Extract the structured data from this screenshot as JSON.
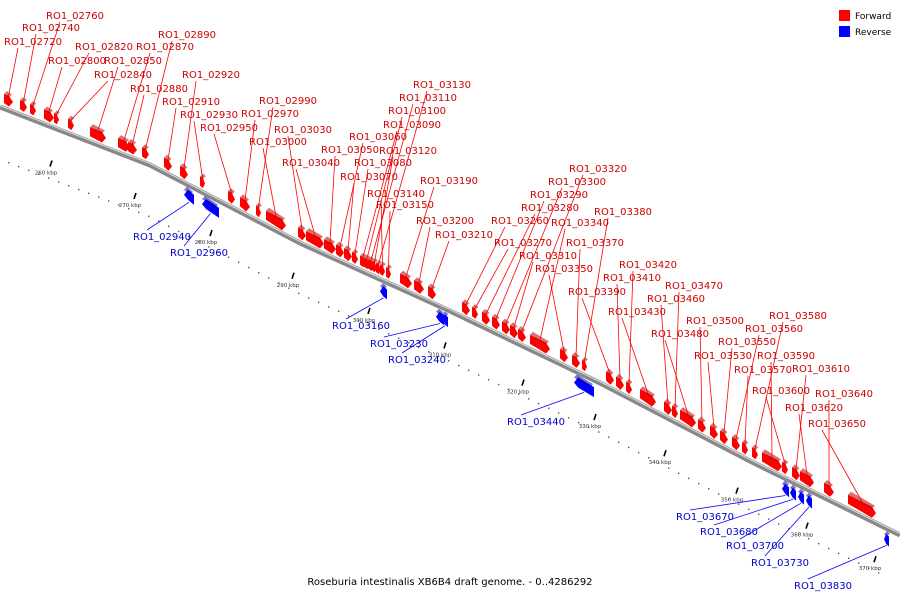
{
  "caption": "Roseburia intestinalis XB6B4 draft genome. - 0..4286292",
  "colors": {
    "forward": "#ff0000",
    "reverse": "#0000ff",
    "backbone": "#888888"
  },
  "legend": [
    {
      "label": "Forward",
      "color": "#ff0000"
    },
    {
      "label": "Reverse",
      "color": "#0000ff"
    }
  ],
  "ticks": [
    {
      "label": "260 kbp",
      "kbp": 260
    },
    {
      "label": "270 kbp",
      "kbp": 270
    },
    {
      "label": "280 kbp",
      "kbp": 280
    },
    {
      "label": "290 kbp",
      "kbp": 290
    },
    {
      "label": "300 kbp",
      "kbp": 300
    },
    {
      "label": "310 kbp",
      "kbp": 310
    },
    {
      "label": "320 kbp",
      "kbp": 320
    },
    {
      "label": "330 kbp",
      "kbp": 330
    },
    {
      "label": "340 kbp",
      "kbp": 340
    },
    {
      "label": "350 kbp",
      "kbp": 350
    },
    {
      "label": "360 kbp",
      "kbp": 360
    },
    {
      "label": "370 kbp",
      "kbp": 370
    }
  ],
  "genes": [
    {
      "name": "RO1_02720",
      "strand": "forward"
    },
    {
      "name": "RO1_02740",
      "strand": "forward"
    },
    {
      "name": "RO1_02760",
      "strand": "forward"
    },
    {
      "name": "RO1_02800",
      "strand": "forward"
    },
    {
      "name": "RO1_02820",
      "strand": "forward"
    },
    {
      "name": "RO1_02840",
      "strand": "forward"
    },
    {
      "name": "RO1_02850",
      "strand": "forward"
    },
    {
      "name": "RO1_02870",
      "strand": "forward"
    },
    {
      "name": "RO1_02880",
      "strand": "forward"
    },
    {
      "name": "RO1_02890",
      "strand": "forward"
    },
    {
      "name": "RO1_02910",
      "strand": "forward"
    },
    {
      "name": "RO1_02920",
      "strand": "forward"
    },
    {
      "name": "RO1_02930",
      "strand": "forward"
    },
    {
      "name": "RO1_02940",
      "strand": "reverse"
    },
    {
      "name": "RO1_02950",
      "strand": "forward"
    },
    {
      "name": "RO1_02960",
      "strand": "reverse"
    },
    {
      "name": "RO1_02970",
      "strand": "forward"
    },
    {
      "name": "RO1_02990",
      "strand": "forward"
    },
    {
      "name": "RO1_03000",
      "strand": "forward"
    },
    {
      "name": "RO1_03030",
      "strand": "forward"
    },
    {
      "name": "RO1_03040",
      "strand": "forward"
    },
    {
      "name": "RO1_03050",
      "strand": "forward"
    },
    {
      "name": "RO1_03060",
      "strand": "forward"
    },
    {
      "name": "RO1_03070",
      "strand": "forward"
    },
    {
      "name": "RO1_03080",
      "strand": "forward"
    },
    {
      "name": "RO1_03090",
      "strand": "forward"
    },
    {
      "name": "RO1_03100",
      "strand": "forward"
    },
    {
      "name": "RO1_03110",
      "strand": "forward"
    },
    {
      "name": "RO1_03120",
      "strand": "forward"
    },
    {
      "name": "RO1_03130",
      "strand": "forward"
    },
    {
      "name": "RO1_03140",
      "strand": "forward"
    },
    {
      "name": "RO1_03150",
      "strand": "forward"
    },
    {
      "name": "RO1_03160",
      "strand": "reverse"
    },
    {
      "name": "RO1_03190",
      "strand": "forward"
    },
    {
      "name": "RO1_03200",
      "strand": "forward"
    },
    {
      "name": "RO1_03210",
      "strand": "forward"
    },
    {
      "name": "RO1_03230",
      "strand": "reverse"
    },
    {
      "name": "RO1_03240",
      "strand": "reverse"
    },
    {
      "name": "RO1_03260",
      "strand": "forward"
    },
    {
      "name": "RO1_03270",
      "strand": "forward"
    },
    {
      "name": "RO1_03280",
      "strand": "forward"
    },
    {
      "name": "RO1_03290",
      "strand": "forward"
    },
    {
      "name": "RO1_03300",
      "strand": "forward"
    },
    {
      "name": "RO1_03310",
      "strand": "forward"
    },
    {
      "name": "RO1_03320",
      "strand": "forward"
    },
    {
      "name": "RO1_03340",
      "strand": "forward"
    },
    {
      "name": "RO1_03350",
      "strand": "forward"
    },
    {
      "name": "RO1_03370",
      "strand": "forward"
    },
    {
      "name": "RO1_03380",
      "strand": "forward"
    },
    {
      "name": "RO1_03390",
      "strand": "forward"
    },
    {
      "name": "RO1_03410",
      "strand": "forward"
    },
    {
      "name": "RO1_03420",
      "strand": "forward"
    },
    {
      "name": "RO1_03430",
      "strand": "forward"
    },
    {
      "name": "RO1_03440",
      "strand": "reverse"
    },
    {
      "name": "RO1_03460",
      "strand": "forward"
    },
    {
      "name": "RO1_03470",
      "strand": "forward"
    },
    {
      "name": "RO1_03480",
      "strand": "forward"
    },
    {
      "name": "RO1_03500",
      "strand": "forward"
    },
    {
      "name": "RO1_03530",
      "strand": "forward"
    },
    {
      "name": "RO1_03550",
      "strand": "forward"
    },
    {
      "name": "RO1_03560",
      "strand": "forward"
    },
    {
      "name": "RO1_03570",
      "strand": "forward"
    },
    {
      "name": "RO1_03580",
      "strand": "forward"
    },
    {
      "name": "RO1_03590",
      "strand": "forward"
    },
    {
      "name": "RO1_03600",
      "strand": "forward"
    },
    {
      "name": "RO1_03610",
      "strand": "forward"
    },
    {
      "name": "RO1_03620",
      "strand": "forward"
    },
    {
      "name": "RO1_03640",
      "strand": "forward"
    },
    {
      "name": "RO1_03650",
      "strand": "forward"
    },
    {
      "name": "RO1_03670",
      "strand": "reverse"
    },
    {
      "name": "RO1_03680",
      "strand": "reverse"
    },
    {
      "name": "RO1_03700",
      "strand": "reverse"
    },
    {
      "name": "RO1_03730",
      "strand": "reverse"
    },
    {
      "name": "RO1_03830",
      "strand": "reverse"
    }
  ]
}
